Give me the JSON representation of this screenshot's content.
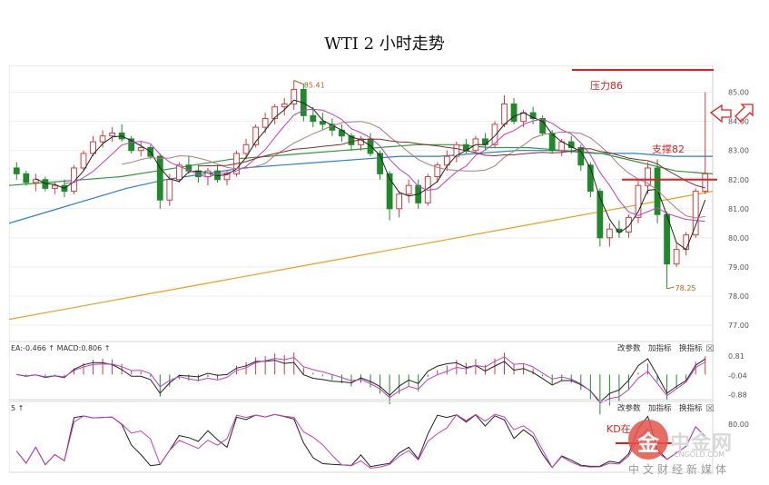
{
  "title": "WTI 2 小时走势",
  "main_panel": {
    "y_ticks": [
      "85.00",
      "84.00",
      "83.00",
      "82.00",
      "81.00",
      "80.00",
      "79.00",
      "78.00",
      "77.00"
    ],
    "high_label": "85.41",
    "low_label": "78.25",
    "resistance_label": "压力86",
    "support_label": "支撑82"
  },
  "macd_panel": {
    "header_left": "EA:-0.466 ↑ MACD:0.806 ↑",
    "buttons": [
      "改参数",
      "加指标",
      "换指标"
    ],
    "close_symbol": "☒",
    "y_ticks": [
      "0.81",
      "-0.04",
      "-0.88"
    ]
  },
  "kd_panel": {
    "header_left": "5 ↑",
    "buttons": [
      "改参数",
      "加指标",
      "换指标"
    ],
    "close_symbol": "☒",
    "y_ticks": [
      "80.00"
    ],
    "annotation": "KD在"
  },
  "watermark": {
    "name": "中金网",
    "url": "CNGOLD.COM",
    "subtitle": "中文财经新媒体",
    "logo_char": "金"
  },
  "colors": {
    "up": "#d23c3c",
    "down": "#1f8a2a",
    "ma_orange": "#e8a21a",
    "ma_blue": "#2a7fd1",
    "ma_green": "#2f9a3a",
    "ma_magenta": "#c040c0",
    "ma_dark": "#8b2a2a",
    "annotation_red": "#e02020"
  },
  "chart_data": {
    "type": "candlestick",
    "title": "WTI 2 小时走势",
    "ylim": [
      76.5,
      85.8
    ],
    "candles": [
      {
        "o": 82.4,
        "h": 82.6,
        "l": 82.0,
        "c": 82.2
      },
      {
        "o": 82.2,
        "h": 82.3,
        "l": 81.8,
        "c": 81.9
      },
      {
        "o": 81.9,
        "h": 82.2,
        "l": 81.6,
        "c": 82.0
      },
      {
        "o": 82.0,
        "h": 82.1,
        "l": 81.6,
        "c": 81.7
      },
      {
        "o": 81.7,
        "h": 81.9,
        "l": 81.5,
        "c": 81.8
      },
      {
        "o": 81.8,
        "h": 82.0,
        "l": 81.4,
        "c": 81.6
      },
      {
        "o": 81.6,
        "h": 82.5,
        "l": 81.5,
        "c": 82.4
      },
      {
        "o": 82.4,
        "h": 83.0,
        "l": 82.3,
        "c": 82.9
      },
      {
        "o": 82.9,
        "h": 83.5,
        "l": 82.8,
        "c": 83.3
      },
      {
        "o": 83.3,
        "h": 83.7,
        "l": 83.1,
        "c": 83.5
      },
      {
        "o": 83.5,
        "h": 83.8,
        "l": 83.3,
        "c": 83.6
      },
      {
        "o": 83.6,
        "h": 83.9,
        "l": 83.3,
        "c": 83.4
      },
      {
        "o": 83.4,
        "h": 83.5,
        "l": 82.9,
        "c": 83.0
      },
      {
        "o": 83.0,
        "h": 83.3,
        "l": 82.8,
        "c": 83.1
      },
      {
        "o": 83.1,
        "h": 83.2,
        "l": 82.7,
        "c": 82.8
      },
      {
        "o": 82.8,
        "h": 82.9,
        "l": 81.0,
        "c": 81.3
      },
      {
        "o": 81.3,
        "h": 82.2,
        "l": 81.1,
        "c": 82.0
      },
      {
        "o": 82.0,
        "h": 82.6,
        "l": 81.9,
        "c": 82.5
      },
      {
        "o": 82.5,
        "h": 82.8,
        "l": 82.2,
        "c": 82.3
      },
      {
        "o": 82.3,
        "h": 82.5,
        "l": 81.9,
        "c": 82.1
      },
      {
        "o": 82.1,
        "h": 82.4,
        "l": 81.8,
        "c": 82.3
      },
      {
        "o": 82.3,
        "h": 82.5,
        "l": 81.9,
        "c": 82.0
      },
      {
        "o": 82.0,
        "h": 82.3,
        "l": 81.8,
        "c": 82.2
      },
      {
        "o": 82.2,
        "h": 83.0,
        "l": 82.1,
        "c": 82.9
      },
      {
        "o": 82.9,
        "h": 83.4,
        "l": 82.7,
        "c": 83.2
      },
      {
        "o": 83.2,
        "h": 83.9,
        "l": 83.1,
        "c": 83.8
      },
      {
        "o": 83.8,
        "h": 84.3,
        "l": 83.6,
        "c": 84.1
      },
      {
        "o": 84.1,
        "h": 84.6,
        "l": 83.9,
        "c": 84.5
      },
      {
        "o": 84.5,
        "h": 84.8,
        "l": 84.2,
        "c": 84.6
      },
      {
        "o": 84.6,
        "h": 85.41,
        "l": 84.4,
        "c": 85.1
      },
      {
        "o": 85.1,
        "h": 85.3,
        "l": 84.0,
        "c": 84.2
      },
      {
        "o": 84.2,
        "h": 84.5,
        "l": 83.8,
        "c": 84.0
      },
      {
        "o": 84.0,
        "h": 84.3,
        "l": 83.7,
        "c": 83.9
      },
      {
        "o": 83.9,
        "h": 84.1,
        "l": 83.5,
        "c": 83.7
      },
      {
        "o": 83.7,
        "h": 83.9,
        "l": 83.3,
        "c": 83.5
      },
      {
        "o": 83.5,
        "h": 83.6,
        "l": 83.0,
        "c": 83.2
      },
      {
        "o": 83.2,
        "h": 83.5,
        "l": 83.0,
        "c": 83.4
      },
      {
        "o": 83.4,
        "h": 83.6,
        "l": 82.8,
        "c": 82.9
      },
      {
        "o": 82.9,
        "h": 83.0,
        "l": 82.0,
        "c": 82.2
      },
      {
        "o": 82.2,
        "h": 82.3,
        "l": 80.6,
        "c": 81.0
      },
      {
        "o": 81.0,
        "h": 81.6,
        "l": 80.7,
        "c": 81.5
      },
      {
        "o": 81.5,
        "h": 82.0,
        "l": 81.2,
        "c": 81.8
      },
      {
        "o": 81.8,
        "h": 82.0,
        "l": 81.0,
        "c": 81.2
      },
      {
        "o": 81.2,
        "h": 82.2,
        "l": 81.1,
        "c": 82.1
      },
      {
        "o": 82.1,
        "h": 82.6,
        "l": 81.9,
        "c": 82.5
      },
      {
        "o": 82.5,
        "h": 83.0,
        "l": 82.3,
        "c": 82.8
      },
      {
        "o": 82.8,
        "h": 83.3,
        "l": 82.6,
        "c": 83.2
      },
      {
        "o": 83.2,
        "h": 83.4,
        "l": 82.9,
        "c": 83.0
      },
      {
        "o": 83.0,
        "h": 83.5,
        "l": 82.9,
        "c": 83.4
      },
      {
        "o": 83.4,
        "h": 83.6,
        "l": 83.0,
        "c": 83.2
      },
      {
        "o": 83.2,
        "h": 84.0,
        "l": 83.1,
        "c": 83.9
      },
      {
        "o": 83.9,
        "h": 84.9,
        "l": 83.8,
        "c": 84.6
      },
      {
        "o": 84.6,
        "h": 84.8,
        "l": 83.9,
        "c": 84.0
      },
      {
        "o": 84.0,
        "h": 84.4,
        "l": 83.8,
        "c": 84.3
      },
      {
        "o": 84.3,
        "h": 84.5,
        "l": 83.9,
        "c": 84.1
      },
      {
        "o": 84.1,
        "h": 84.2,
        "l": 83.5,
        "c": 83.6
      },
      {
        "o": 83.6,
        "h": 83.7,
        "l": 82.9,
        "c": 83.0
      },
      {
        "o": 83.0,
        "h": 83.4,
        "l": 82.8,
        "c": 83.3
      },
      {
        "o": 83.3,
        "h": 83.5,
        "l": 82.9,
        "c": 83.1
      },
      {
        "o": 83.1,
        "h": 83.2,
        "l": 82.3,
        "c": 82.5
      },
      {
        "o": 82.5,
        "h": 82.6,
        "l": 81.4,
        "c": 81.6
      },
      {
        "o": 81.6,
        "h": 81.7,
        "l": 79.7,
        "c": 80.0
      },
      {
        "o": 80.0,
        "h": 80.5,
        "l": 79.7,
        "c": 80.3
      },
      {
        "o": 80.3,
        "h": 80.6,
        "l": 80.0,
        "c": 80.2
      },
      {
        "o": 80.2,
        "h": 80.8,
        "l": 80.0,
        "c": 80.7
      },
      {
        "o": 80.7,
        "h": 82.0,
        "l": 80.5,
        "c": 81.8
      },
      {
        "o": 81.8,
        "h": 82.6,
        "l": 81.5,
        "c": 82.4
      },
      {
        "o": 82.4,
        "h": 82.7,
        "l": 80.5,
        "c": 80.8
      },
      {
        "o": 80.8,
        "h": 80.9,
        "l": 78.25,
        "c": 79.1
      },
      {
        "o": 79.1,
        "h": 79.8,
        "l": 79.0,
        "c": 79.6
      },
      {
        "o": 79.6,
        "h": 80.2,
        "l": 79.4,
        "c": 80.1
      },
      {
        "o": 80.1,
        "h": 81.7,
        "l": 80.0,
        "c": 81.6
      },
      {
        "o": 81.6,
        "h": 85.0,
        "l": 81.5,
        "c": 82.2
      }
    ],
    "moving_averages": [
      {
        "color": "orange",
        "values": [
          77.2,
          77.4,
          77.6,
          77.8,
          78.0,
          78.2,
          78.4,
          78.6,
          78.8,
          79.0,
          79.2,
          79.4,
          79.6,
          79.8,
          80.0,
          80.2,
          80.4,
          80.6,
          80.8,
          81.0,
          81.2,
          81.4,
          81.6
        ]
      },
      {
        "color": "blue",
        "values": [
          80.5,
          80.9,
          81.3,
          81.7,
          82.0,
          82.2,
          82.4,
          82.5,
          82.6,
          82.7,
          82.8,
          82.8,
          82.9,
          83.0,
          83.0,
          82.9,
          82.9,
          82.8,
          82.8
        ]
      },
      {
        "color": "green",
        "values": [
          81.8,
          81.9,
          82.0,
          82.1,
          82.3,
          82.5,
          82.7,
          82.8,
          82.9,
          83.0,
          83.1,
          83.2,
          83.2,
          83.1,
          83.1,
          83.0,
          82.9,
          82.6,
          82.3,
          82.2
        ]
      }
    ],
    "resistance": 86,
    "support": 82,
    "high": 85.41,
    "low": 78.25,
    "macd": {
      "ylim": [
        -0.95,
        0.9
      ],
      "ticks": [
        0.81,
        -0.04,
        -0.88
      ]
    },
    "kd": {
      "ylim": [
        0,
        100
      ],
      "ticks": [
        80
      ]
    }
  }
}
